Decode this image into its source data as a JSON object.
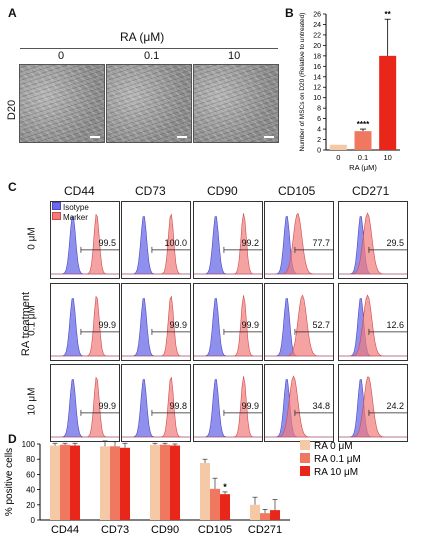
{
  "panelA": {
    "label": "A",
    "header": "RA (μM)",
    "concentrations": [
      "0",
      "0.1",
      "10"
    ],
    "row_label": "D20"
  },
  "panelB": {
    "label": "B",
    "significance": [
      "****",
      "**"
    ]
  },
  "panelC": {
    "label": "C",
    "markers": [
      "CD44",
      "CD73",
      "CD90",
      "CD105",
      "CD271"
    ],
    "rows": [
      "0 μM",
      "0.1 μM",
      "10 μM"
    ],
    "row_group_label": "RA treatment",
    "legend": {
      "isotype": "Isotype",
      "marker": "Marker"
    },
    "values": [
      [
        "99.5",
        "100.0",
        "99.2",
        "77.7",
        "29.5"
      ],
      [
        "99.9",
        "99.9",
        "99.9",
        "52.7",
        "12.6"
      ],
      [
        "99.9",
        "99.8",
        "99.9",
        "34.8",
        "24.2"
      ]
    ],
    "colors": {
      "isotype": "#6a6ae8",
      "marker": "#f07b7b"
    }
  },
  "panelD": {
    "label": "D",
    "significance": "*"
  },
  "chart_data": [
    {
      "type": "bar",
      "panel": "B",
      "categories": [
        "0",
        "0.1",
        "10"
      ],
      "values": [
        1.0,
        3.6,
        18.0
      ],
      "errors": [
        0.0,
        0.4,
        7.0
      ],
      "colors": [
        "#f5c8a6",
        "#f07860",
        "#e8261a"
      ],
      "title": "",
      "xlabel": "RA (μM)",
      "ylabel": "Number of MSCs on D20 (Relative to untreated)",
      "ylim": [
        0,
        26
      ],
      "yticks": [
        0,
        2,
        4,
        6,
        8,
        10,
        12,
        14,
        16,
        18,
        20,
        22,
        24,
        26
      ]
    },
    {
      "type": "bar",
      "panel": "D",
      "categories": [
        "CD44",
        "CD73",
        "CD90",
        "CD105",
        "CD271"
      ],
      "series": [
        {
          "name": "RA 0 μM",
          "color": "#f5c8a6",
          "values": [
            98,
            97,
            99,
            75,
            20
          ],
          "errors": [
            3,
            7,
            2,
            5,
            10
          ]
        },
        {
          "name": "RA 0.1 μM",
          "color": "#f07860",
          "values": [
            99,
            97,
            99,
            41,
            9
          ],
          "errors": [
            2,
            6,
            2,
            14,
            5
          ]
        },
        {
          "name": "RA 10 μM",
          "color": "#e8261a",
          "values": [
            98,
            95,
            98,
            34,
            13
          ],
          "errors": [
            3,
            6,
            2,
            3,
            14
          ]
        }
      ],
      "xlabel": "",
      "ylabel": "% positive cells",
      "ylim": [
        0,
        100
      ],
      "yticks": [
        0,
        20,
        40,
        60,
        80,
        100
      ]
    }
  ]
}
